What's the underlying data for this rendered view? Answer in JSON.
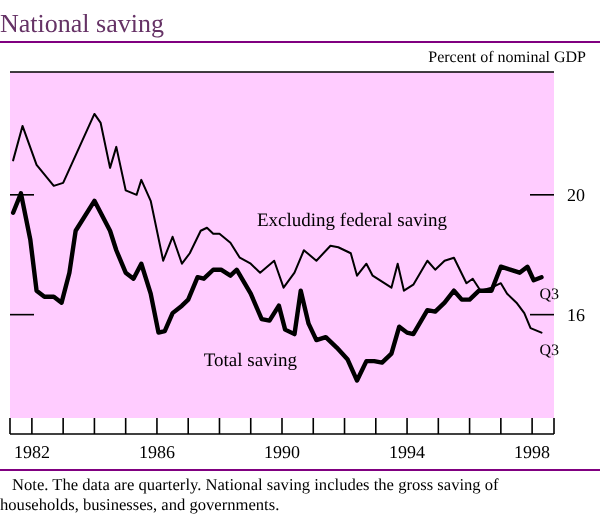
{
  "chart_data": {
    "type": "line",
    "title": "National saving",
    "ylabel": "Percent of nominal GDP",
    "xlim": [
      1981.3,
      1998.7
    ],
    "ylim": [
      12.55,
      24.1
    ],
    "xticks": [
      {
        "value": 1982,
        "label": "1982"
      },
      {
        "value": 1983,
        "label": null
      },
      {
        "value": 1984,
        "label": null
      },
      {
        "value": 1985,
        "label": null
      },
      {
        "value": 1986,
        "label": "1986"
      },
      {
        "value": 1987,
        "label": null
      },
      {
        "value": 1988,
        "label": null
      },
      {
        "value": 1989,
        "label": null
      },
      {
        "value": 1990,
        "label": "1990"
      },
      {
        "value": 1991,
        "label": null
      },
      {
        "value": 1992,
        "label": null
      },
      {
        "value": 1993,
        "label": null
      },
      {
        "value": 1994,
        "label": "1994"
      },
      {
        "value": 1995,
        "label": null
      },
      {
        "value": 1996,
        "label": null
      },
      {
        "value": 1997,
        "label": null
      },
      {
        "value": 1998,
        "label": "1998"
      }
    ],
    "yticks": [
      16,
      20
    ],
    "grid": false,
    "line_style": "solid",
    "series": [
      {
        "name": "Excluding federal saving",
        "color": "#000000",
        "x": [
          1981.4,
          1981.7,
          1982.15,
          1982.7,
          1983.0,
          1984.0,
          1984.2,
          1984.5,
          1984.7,
          1985.0,
          1985.35,
          1985.5,
          1985.8,
          1986.2,
          1986.5,
          1986.8,
          1987.05,
          1987.4,
          1987.6,
          1987.8,
          1988.0,
          1988.35,
          1988.65,
          1989.0,
          1989.3,
          1989.75,
          1990.05,
          1990.4,
          1990.7,
          1991.1,
          1991.55,
          1991.8,
          1992.2,
          1992.4,
          1992.7,
          1992.9,
          1993.5,
          1993.7,
          1993.9,
          1994.2,
          1994.65,
          1994.9,
          1995.2,
          1995.5,
          1995.9,
          1996.1,
          1996.35,
          1996.7,
          1997.0,
          1997.2,
          1997.5,
          1997.75,
          1997.95,
          1998.3
        ],
        "values": [
          21.15,
          22.3,
          21.0,
          20.3,
          20.4,
          22.7,
          22.4,
          20.9,
          21.6,
          20.15,
          20.0,
          20.5,
          19.8,
          17.8,
          18.6,
          17.7,
          18.05,
          18.8,
          18.9,
          18.7,
          18.7,
          18.4,
          17.9,
          17.7,
          17.4,
          17.8,
          16.9,
          17.4,
          18.15,
          17.8,
          18.3,
          18.25,
          18.05,
          17.3,
          17.7,
          17.3,
          16.9,
          17.7,
          16.8,
          17.0,
          17.8,
          17.5,
          17.8,
          17.9,
          17.05,
          17.2,
          16.8,
          16.9,
          17.05,
          16.7,
          16.4,
          16.05,
          15.55,
          15.4
        ]
      },
      {
        "name": "Total saving",
        "color": "#000000",
        "x": [
          1981.4,
          1981.65,
          1981.95,
          1982.15,
          1982.4,
          1982.7,
          1982.95,
          1983.2,
          1983.4,
          1984.0,
          1984.5,
          1984.7,
          1985.0,
          1985.25,
          1985.5,
          1985.8,
          1986.05,
          1986.25,
          1986.5,
          1986.8,
          1987.0,
          1987.3,
          1987.5,
          1987.8,
          1988.05,
          1988.35,
          1988.55,
          1989.0,
          1989.35,
          1989.6,
          1989.9,
          1990.1,
          1990.4,
          1990.6,
          1990.85,
          1991.1,
          1991.4,
          1991.75,
          1992.1,
          1992.4,
          1992.7,
          1992.95,
          1993.2,
          1993.5,
          1993.75,
          1994.0,
          1994.2,
          1994.65,
          1994.9,
          1995.2,
          1995.5,
          1995.75,
          1996.0,
          1996.3,
          1996.7,
          1997.0,
          1997.3,
          1997.6,
          1997.85,
          1998.05,
          1998.3
        ],
        "values": [
          19.4,
          20.05,
          18.5,
          16.8,
          16.6,
          16.6,
          16.4,
          17.4,
          18.8,
          19.8,
          18.8,
          18.15,
          17.4,
          17.2,
          17.7,
          16.7,
          15.4,
          15.45,
          16.05,
          16.3,
          16.5,
          17.25,
          17.2,
          17.5,
          17.5,
          17.3,
          17.5,
          16.7,
          15.85,
          15.8,
          16.3,
          15.5,
          15.35,
          16.8,
          15.7,
          15.15,
          15.25,
          14.9,
          14.5,
          13.8,
          14.45,
          14.45,
          14.4,
          14.7,
          15.6,
          15.4,
          15.35,
          16.15,
          16.1,
          16.4,
          16.8,
          16.5,
          16.5,
          16.8,
          16.8,
          17.6,
          17.5,
          17.4,
          17.6,
          17.15,
          17.25
        ]
      }
    ],
    "annotations": [
      {
        "text": "Q3",
        "x": 1998.3,
        "y": 17.25
      },
      {
        "text": "Q3",
        "x": 1998.3,
        "y": 15.4
      },
      "Note. The data are quarterly. National saving includes the gross saving of households, businesses, and governments."
    ]
  }
}
